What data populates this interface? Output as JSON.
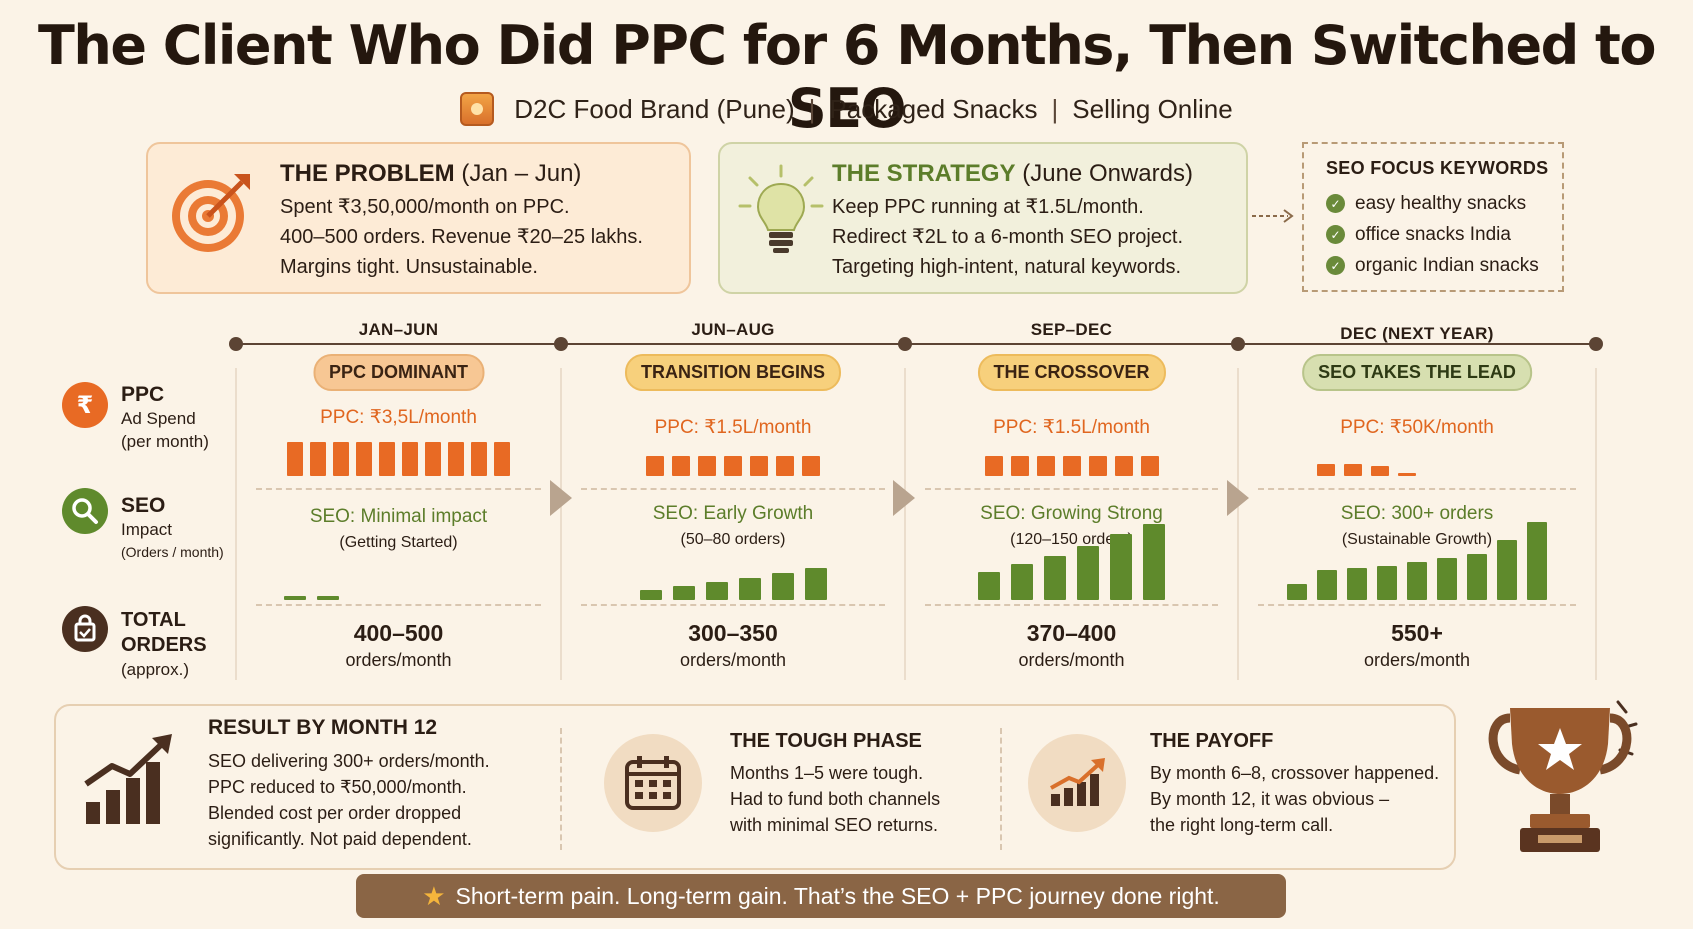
{
  "title": "The Client Who Did PPC for 6 Months, Then Switched to SEO",
  "subtitle": {
    "items": [
      "D2C Food Brand (Pune)",
      "Packaged Snacks",
      "Selling Online"
    ],
    "separator": "|"
  },
  "problem": {
    "heading": "THE PROBLEM",
    "period": "(Jan – Jun)",
    "lines": [
      "Spent ₹3,50,000/month on PPC.",
      "400–500 orders. Revenue ₹20–25 lakhs.",
      "Margins tight. Unsustainable."
    ]
  },
  "strategy": {
    "heading": "THE STRATEGY",
    "period": "(June Onwards)",
    "lines": [
      "Keep PPC running at ₹1.5L/month.",
      "Redirect ₹2L to a 6-month SEO project.",
      "Targeting high-intent, natural keywords."
    ]
  },
  "keywords": {
    "title": "SEO FOCUS KEYWORDS",
    "items": [
      "easy healthy snacks",
      "office snacks India",
      "organic Indian snacks"
    ]
  },
  "legend": {
    "ppc": {
      "title": "PPC",
      "sub1": "Ad Spend",
      "sub2": "(per month)",
      "symbol": "₹"
    },
    "seo": {
      "title": "SEO",
      "sub1": "Impact",
      "sub2": "(Orders / month)"
    },
    "total": {
      "title1": "TOTAL",
      "title2": "ORDERS",
      "sub": "(approx.)"
    }
  },
  "phases": [
    {
      "date": "JAN–JUN",
      "pill": "PPC DOMINANT",
      "pill_style": "orange",
      "ppc": "PPC: ₹3,5L/month",
      "ppc_bars": [
        1,
        1,
        1,
        1,
        1,
        1,
        1,
        1,
        1,
        1
      ],
      "seo": "SEO: Minimal impact",
      "seo_sub": "(Getting Started)",
      "seo_bars": [
        0.05,
        0.05
      ],
      "total": "400–500",
      "total_unit": "orders/month"
    },
    {
      "date": "JUN–AUG",
      "pill": "TRANSITION BEGINS",
      "pill_style": "yellow",
      "ppc": "PPC: ₹1.5L/month",
      "ppc_bars": [
        0.6,
        0.6,
        0.6,
        0.6,
        0.6,
        0.6,
        0.6
      ],
      "seo": "SEO: Early Growth",
      "seo_sub": "(50–80 orders)",
      "seo_bars": [
        0.12,
        0.17,
        0.22,
        0.28,
        0.34,
        0.4
      ],
      "total": "300–350",
      "total_unit": "orders/month"
    },
    {
      "date": "SEP–DEC",
      "pill": "THE CROSSOVER",
      "pill_style": "yellow",
      "ppc": "PPC: ₹1.5L/month",
      "ppc_bars": [
        0.6,
        0.6,
        0.6,
        0.6,
        0.6,
        0.6,
        0.6
      ],
      "seo": "SEO: Growing Strong",
      "seo_sub": "(120–150 orders)",
      "seo_bars": [
        0.35,
        0.45,
        0.55,
        0.68,
        0.82,
        0.95
      ],
      "total": "370–400",
      "total_unit": "orders/month"
    },
    {
      "date": "DEC (NEXT YEAR)",
      "pill": "SEO TAKES THE LEAD",
      "pill_style": "green",
      "ppc": "PPC: ₹50K/month",
      "ppc_bars": [
        0.35,
        0.35,
        0.3,
        0.08
      ],
      "seo": "SEO: 300+ orders",
      "seo_sub": "(Sustainable Growth)",
      "seo_bars": [
        0.2,
        0.38,
        0.4,
        0.42,
        0.48,
        0.52,
        0.58,
        0.75,
        0.97
      ],
      "total": "550+",
      "total_unit": "orders/month"
    }
  ],
  "result": {
    "heading": "RESULT BY MONTH 12",
    "lines": [
      "SEO delivering 300+ orders/month.",
      "PPC reduced to ₹50,000/month.",
      "Blended cost per order dropped",
      "significantly. Not paid dependent."
    ]
  },
  "tough": {
    "heading": "THE TOUGH PHASE",
    "lines": [
      "Months 1–5  were tough.",
      "Had to fund both channels",
      "with minimal SEO returns."
    ]
  },
  "payoff": {
    "heading": "THE PAYOFF",
    "lines": [
      "By month 6–8, crossover happened.",
      "By month 12, it was obvious –",
      "the right long-term call."
    ]
  },
  "banner": "Short-term pain. Long-term gain. That’s the SEO + PPC journey done right.",
  "colors": {
    "orange": "#e86a24",
    "green": "#5f8a2c",
    "brown": "#4a2f20",
    "background": "#fbf3e7"
  }
}
